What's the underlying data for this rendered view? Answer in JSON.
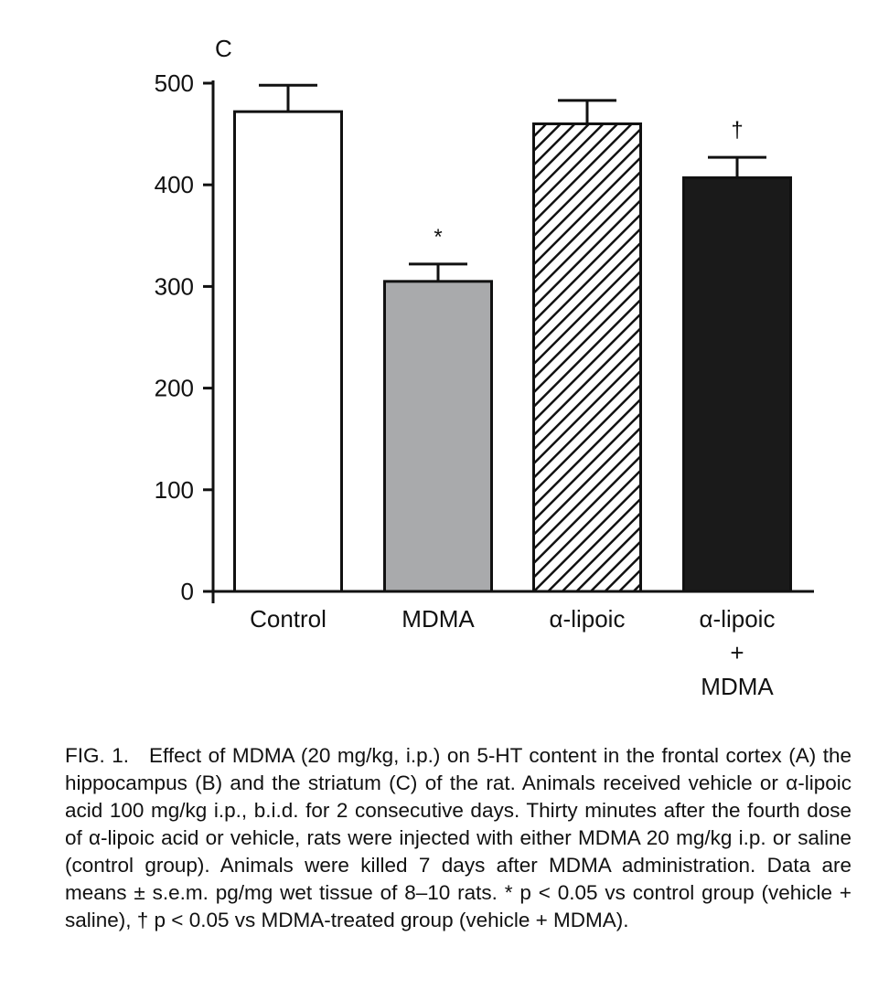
{
  "chart_data": {
    "type": "bar",
    "panel_label": "C",
    "categories": [
      "Control",
      "MDMA",
      "α-lipoic",
      "α-lipoic + MDMA"
    ],
    "category_label_lines": [
      [
        "Control"
      ],
      [
        "MDMA"
      ],
      [
        "α-lipoic"
      ],
      [
        "α-lipoic",
        "+",
        "MDMA"
      ]
    ],
    "values": [
      472,
      305,
      460,
      407
    ],
    "errors": [
      26,
      17,
      23,
      20
    ],
    "fills": [
      "#ffffff",
      "#a9aaac",
      "hatch",
      "#1a1a1a"
    ],
    "significance": [
      "",
      "*",
      "",
      "†"
    ],
    "ylim": [
      0,
      500
    ],
    "yticks": [
      0,
      100,
      200,
      300,
      400,
      500
    ],
    "xlabel": "",
    "ylabel": "",
    "title": ""
  },
  "caption": {
    "figure_number": "FIG. 1.",
    "text": "Effect of MDMA (20 mg/kg, i.p.) on 5-HT content in the frontal cortex (A) the hippocampus (B) and the striatum (C) of the rat. Animals received vehicle or α-lipoic acid 100 mg/kg i.p., b.i.d. for 2 consecutive days. Thirty minutes after the fourth dose of α-lipoic acid or vehicle, rats were injected with either MDMA 20 mg/kg i.p. or saline (control group). Animals were killed 7 days after MDMA administration. Data are means ± s.e.m. pg/mg wet tissue of 8–10 rats. * p < 0.05 vs control group (vehicle + saline), † p < 0.05 vs MDMA-treated group (vehicle + MDMA)."
  }
}
